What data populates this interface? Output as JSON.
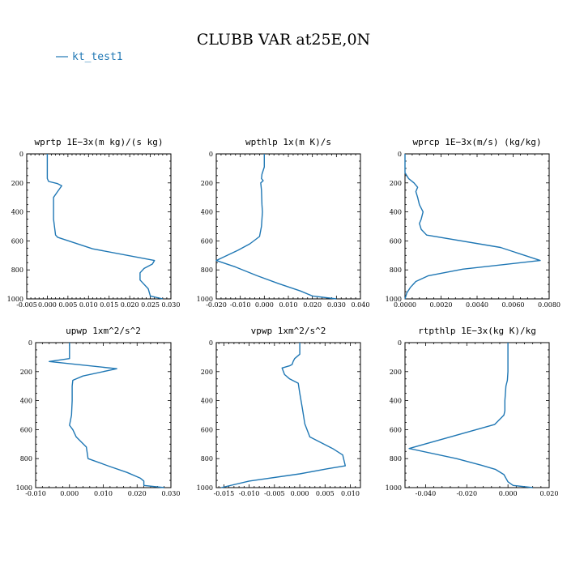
{
  "figure": {
    "title": "CLUBB VAR at25E,0N",
    "legend": {
      "label": "kt_test1",
      "color": "#1f77b4"
    }
  },
  "chart_data": [
    {
      "type": "line",
      "title": "wprtp   1E−3x(m kg)/(s kg)",
      "xlim": [
        -0.005,
        0.03
      ],
      "xticks": [
        -0.005,
        0.0,
        0.005,
        0.01,
        0.015,
        0.02,
        0.025,
        0.03
      ],
      "xticklabels": [
        "-0.005",
        "0.000",
        "0.005",
        "0.010",
        "0.015",
        "0.020",
        "0.025",
        "0.030"
      ],
      "ylim": [
        1000,
        0
      ],
      "yticks": [
        0,
        200,
        400,
        600,
        800,
        1000
      ],
      "series": [
        {
          "color": "#1f77b4",
          "points": [
            [
              0.0,
              0
            ],
            [
              0.0,
              100
            ],
            [
              0.0,
              170
            ],
            [
              0.0003,
              190
            ],
            [
              0.0025,
              205
            ],
            [
              0.0035,
              220
            ],
            [
              0.0025,
              260
            ],
            [
              0.0015,
              300
            ],
            [
              0.0015,
              350
            ],
            [
              0.0015,
              400
            ],
            [
              0.0015,
              450
            ],
            [
              0.002,
              560
            ],
            [
              0.0025,
              575
            ],
            [
              0.011,
              655
            ],
            [
              0.026,
              735
            ],
            [
              0.0255,
              760
            ],
            [
              0.0235,
              790
            ],
            [
              0.0225,
              820
            ],
            [
              0.0225,
              870
            ],
            [
              0.0245,
              930
            ],
            [
              0.025,
              980
            ],
            [
              0.028,
              1000
            ]
          ]
        }
      ]
    },
    {
      "type": "line",
      "title": "wpthlp   1x(m K)/s",
      "xlim": [
        -0.02,
        0.04
      ],
      "xticks": [
        -0.02,
        -0.01,
        0.0,
        0.01,
        0.02,
        0.03,
        0.04
      ],
      "xticklabels": [
        "-0.020",
        "-0.010",
        "0.000",
        "0.010",
        "0.020",
        "0.030",
        "0.040"
      ],
      "ylim": [
        1000,
        0
      ],
      "yticks": [
        0,
        200,
        400,
        600,
        800,
        1000
      ],
      "series": [
        {
          "color": "#1f77b4",
          "points": [
            [
              0.0,
              0
            ],
            [
              0.0,
              90
            ],
            [
              -0.001,
              140
            ],
            [
              -0.0012,
              170
            ],
            [
              -0.0005,
              185
            ],
            [
              -0.0015,
              200
            ],
            [
              -0.0012,
              250
            ],
            [
              -0.001,
              350
            ],
            [
              -0.0008,
              400
            ],
            [
              -0.0012,
              500
            ],
            [
              -0.002,
              570
            ],
            [
              -0.006,
              620
            ],
            [
              -0.011,
              665
            ],
            [
              -0.02,
              735
            ],
            [
              -0.012,
              780
            ],
            [
              -0.003,
              840
            ],
            [
              0.006,
              895
            ],
            [
              0.015,
              945
            ],
            [
              0.02,
              980
            ],
            [
              0.03,
              1000
            ]
          ]
        }
      ]
    },
    {
      "type": "line",
      "title": "wprcp   1E−3x(m/s) (kg/kg)",
      "xlim": [
        0.0,
        0.008
      ],
      "xticks": [
        0.0,
        0.002,
        0.004,
        0.006,
        0.008
      ],
      "xticklabels": [
        "0.0000",
        "0.0020",
        "0.0040",
        "0.0060",
        "0.0080"
      ],
      "ylim": [
        1000,
        0
      ],
      "yticks": [
        0,
        200,
        400,
        600,
        800,
        1000
      ],
      "series": [
        {
          "color": "#1f77b4",
          "points": [
            [
              0.0,
              0
            ],
            [
              0.0,
              100
            ],
            [
              0.0,
              130
            ],
            [
              0.0002,
              170
            ],
            [
              0.0005,
              200
            ],
            [
              0.0007,
              230
            ],
            [
              0.0006,
              260
            ],
            [
              0.0007,
              300
            ],
            [
              0.0008,
              350
            ],
            [
              0.001,
              400
            ],
            [
              0.0009,
              450
            ],
            [
              0.0008,
              480
            ],
            [
              0.0009,
              520
            ],
            [
              0.0012,
              560
            ],
            [
              0.0053,
              645
            ],
            [
              0.0075,
              735
            ],
            [
              0.0032,
              795
            ],
            [
              0.0013,
              840
            ],
            [
              0.0006,
              880
            ],
            [
              0.0003,
              920
            ],
            [
              0.0001,
              960
            ],
            [
              0.0,
              1000
            ]
          ]
        }
      ]
    },
    {
      "type": "line",
      "title": "upwp   1xm^2/s^2",
      "xlim": [
        -0.01,
        0.03
      ],
      "xticks": [
        -0.01,
        0.0,
        0.01,
        0.02,
        0.03
      ],
      "xticklabels": [
        "-0.010",
        "0.000",
        "0.010",
        "0.020",
        "0.030"
      ],
      "ylim": [
        1000,
        0
      ],
      "yticks": [
        0,
        200,
        400,
        600,
        800,
        1000
      ],
      "series": [
        {
          "color": "#1f77b4",
          "points": [
            [
              0.0,
              0
            ],
            [
              0.0,
              80
            ],
            [
              0.0,
              110
            ],
            [
              -0.006,
              130
            ],
            [
              0.014,
              180
            ],
            [
              0.004,
              230
            ],
            [
              0.001,
              260
            ],
            [
              0.0008,
              300
            ],
            [
              0.0008,
              400
            ],
            [
              0.0006,
              500
            ],
            [
              0.0,
              570
            ],
            [
              0.001,
              600
            ],
            [
              0.002,
              650
            ],
            [
              0.005,
              720
            ],
            [
              0.0055,
              800
            ],
            [
              0.012,
              855
            ],
            [
              0.017,
              895
            ],
            [
              0.021,
              935
            ],
            [
              0.022,
              955
            ],
            [
              0.022,
              985
            ],
            [
              0.028,
              1000
            ]
          ]
        }
      ]
    },
    {
      "type": "line",
      "title": "vpwp   1xm^2/s^2",
      "xlim": [
        -0.0165,
        0.012
      ],
      "xticks": [
        -0.015,
        -0.01,
        -0.005,
        0.0,
        0.005,
        0.01
      ],
      "xticklabels": [
        "-0.015",
        "-0.010",
        "-0.005",
        "0.000",
        "0.005",
        "0.010"
      ],
      "ylim": [
        1000,
        0
      ],
      "yticks": [
        0,
        200,
        400,
        600,
        800,
        1000
      ],
      "series": [
        {
          "color": "#1f77b4",
          "points": [
            [
              0.0,
              0
            ],
            [
              0.0,
              80
            ],
            [
              -0.001,
              110
            ],
            [
              -0.0013,
              130
            ],
            [
              -0.0015,
              150
            ],
            [
              -0.002,
              160
            ],
            [
              -0.0035,
              175
            ],
            [
              -0.003,
              220
            ],
            [
              -0.002,
              250
            ],
            [
              -0.0003,
              280
            ],
            [
              0.0,
              350
            ],
            [
              0.0005,
              450
            ],
            [
              0.001,
              560
            ],
            [
              0.002,
              650
            ],
            [
              0.0065,
              730
            ],
            [
              0.0085,
              775
            ],
            [
              0.009,
              850
            ],
            [
              0.0055,
              870
            ],
            [
              0.0,
              905
            ],
            [
              -0.01,
              955
            ],
            [
              -0.0155,
              1000
            ]
          ]
        }
      ]
    },
    {
      "type": "line",
      "title": "rtpthlp   1E−3x(kg K)/kg",
      "xlim": [
        -0.05,
        0.02
      ],
      "xticks": [
        -0.04,
        -0.02,
        0.0,
        0.02
      ],
      "xticklabels": [
        "-0.040",
        "-0.020",
        "0.000",
        "0.020"
      ],
      "ylim": [
        1000,
        0
      ],
      "yticks": [
        0,
        200,
        400,
        600,
        800,
        1000
      ],
      "series": [
        {
          "color": "#1f77b4",
          "points": [
            [
              0.0,
              0
            ],
            [
              0.0,
              100
            ],
            [
              0.0,
              200
            ],
            [
              -0.0003,
              260
            ],
            [
              -0.001,
              300
            ],
            [
              -0.0015,
              400
            ],
            [
              -0.0015,
              470
            ],
            [
              -0.002,
              500
            ],
            [
              -0.0065,
              565
            ],
            [
              -0.048,
              730
            ],
            [
              -0.025,
              800
            ],
            [
              -0.013,
              845
            ],
            [
              -0.006,
              875
            ],
            [
              -0.002,
              910
            ],
            [
              0.0,
              960
            ],
            [
              0.0025,
              985
            ],
            [
              0.012,
              1000
            ]
          ]
        }
      ]
    }
  ]
}
